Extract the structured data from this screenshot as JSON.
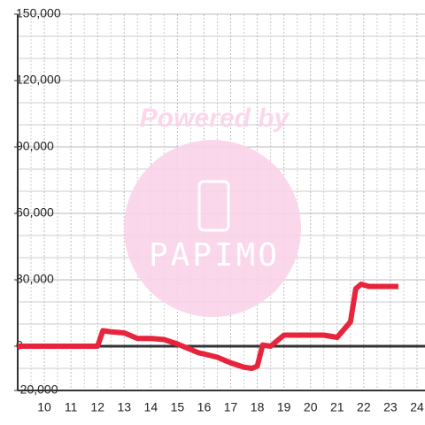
{
  "chart_data": {
    "type": "line",
    "watermark": {
      "title": "Powered by",
      "brand": "PAPIMO"
    },
    "x": [
      9,
      12,
      12.2,
      12.5,
      13,
      13.3,
      13.5,
      14,
      14.5,
      15,
      15.5,
      15.8,
      16,
      16.5,
      17,
      17.5,
      17.8,
      18,
      18.2,
      18.5,
      18.8,
      19,
      20,
      20.5,
      21,
      21.5,
      21.7,
      21.9,
      22.2,
      23.3
    ],
    "series": [
      {
        "color": "#e8243c",
        "values": [
          0,
          0,
          7000,
          6500,
          6000,
          4500,
          3500,
          3500,
          3000,
          1000,
          -1500,
          -3000,
          -3500,
          -5000,
          -7500,
          -9500,
          -10000,
          -9000,
          500,
          0,
          3000,
          5000,
          5000,
          5000,
          4000,
          11000,
          26000,
          28000,
          27000,
          27000
        ]
      }
    ],
    "xlim": [
      9,
      24.3
    ],
    "xticks": [
      10,
      11,
      12,
      13,
      14,
      15,
      16,
      17,
      18,
      19,
      20,
      21,
      22,
      23,
      24
    ],
    "x_minor_ticks": [
      9.5,
      10.5,
      11.5,
      12.5,
      13.5,
      14.5,
      15.5,
      16.5,
      17.5,
      18.5,
      19.5,
      20.5,
      21.5,
      22.5,
      23.5
    ],
    "ylim": [
      -20000,
      150000
    ],
    "yticks": [
      {
        "value": -20000,
        "label": "-20,000"
      },
      0,
      {
        "value": 30000,
        "label": "30,000"
      },
      {
        "value": 60000,
        "label": "60,000"
      },
      {
        "value": 90000,
        "label": "90,000"
      },
      {
        "value": 120000,
        "label": "120,000"
      },
      {
        "value": 150000,
        "label": "150,000"
      }
    ],
    "y_minor_ticks": [
      -10000,
      10000,
      20000,
      40000,
      50000,
      70000,
      80000,
      100000,
      110000,
      130000,
      140000
    ],
    "grid": true
  }
}
